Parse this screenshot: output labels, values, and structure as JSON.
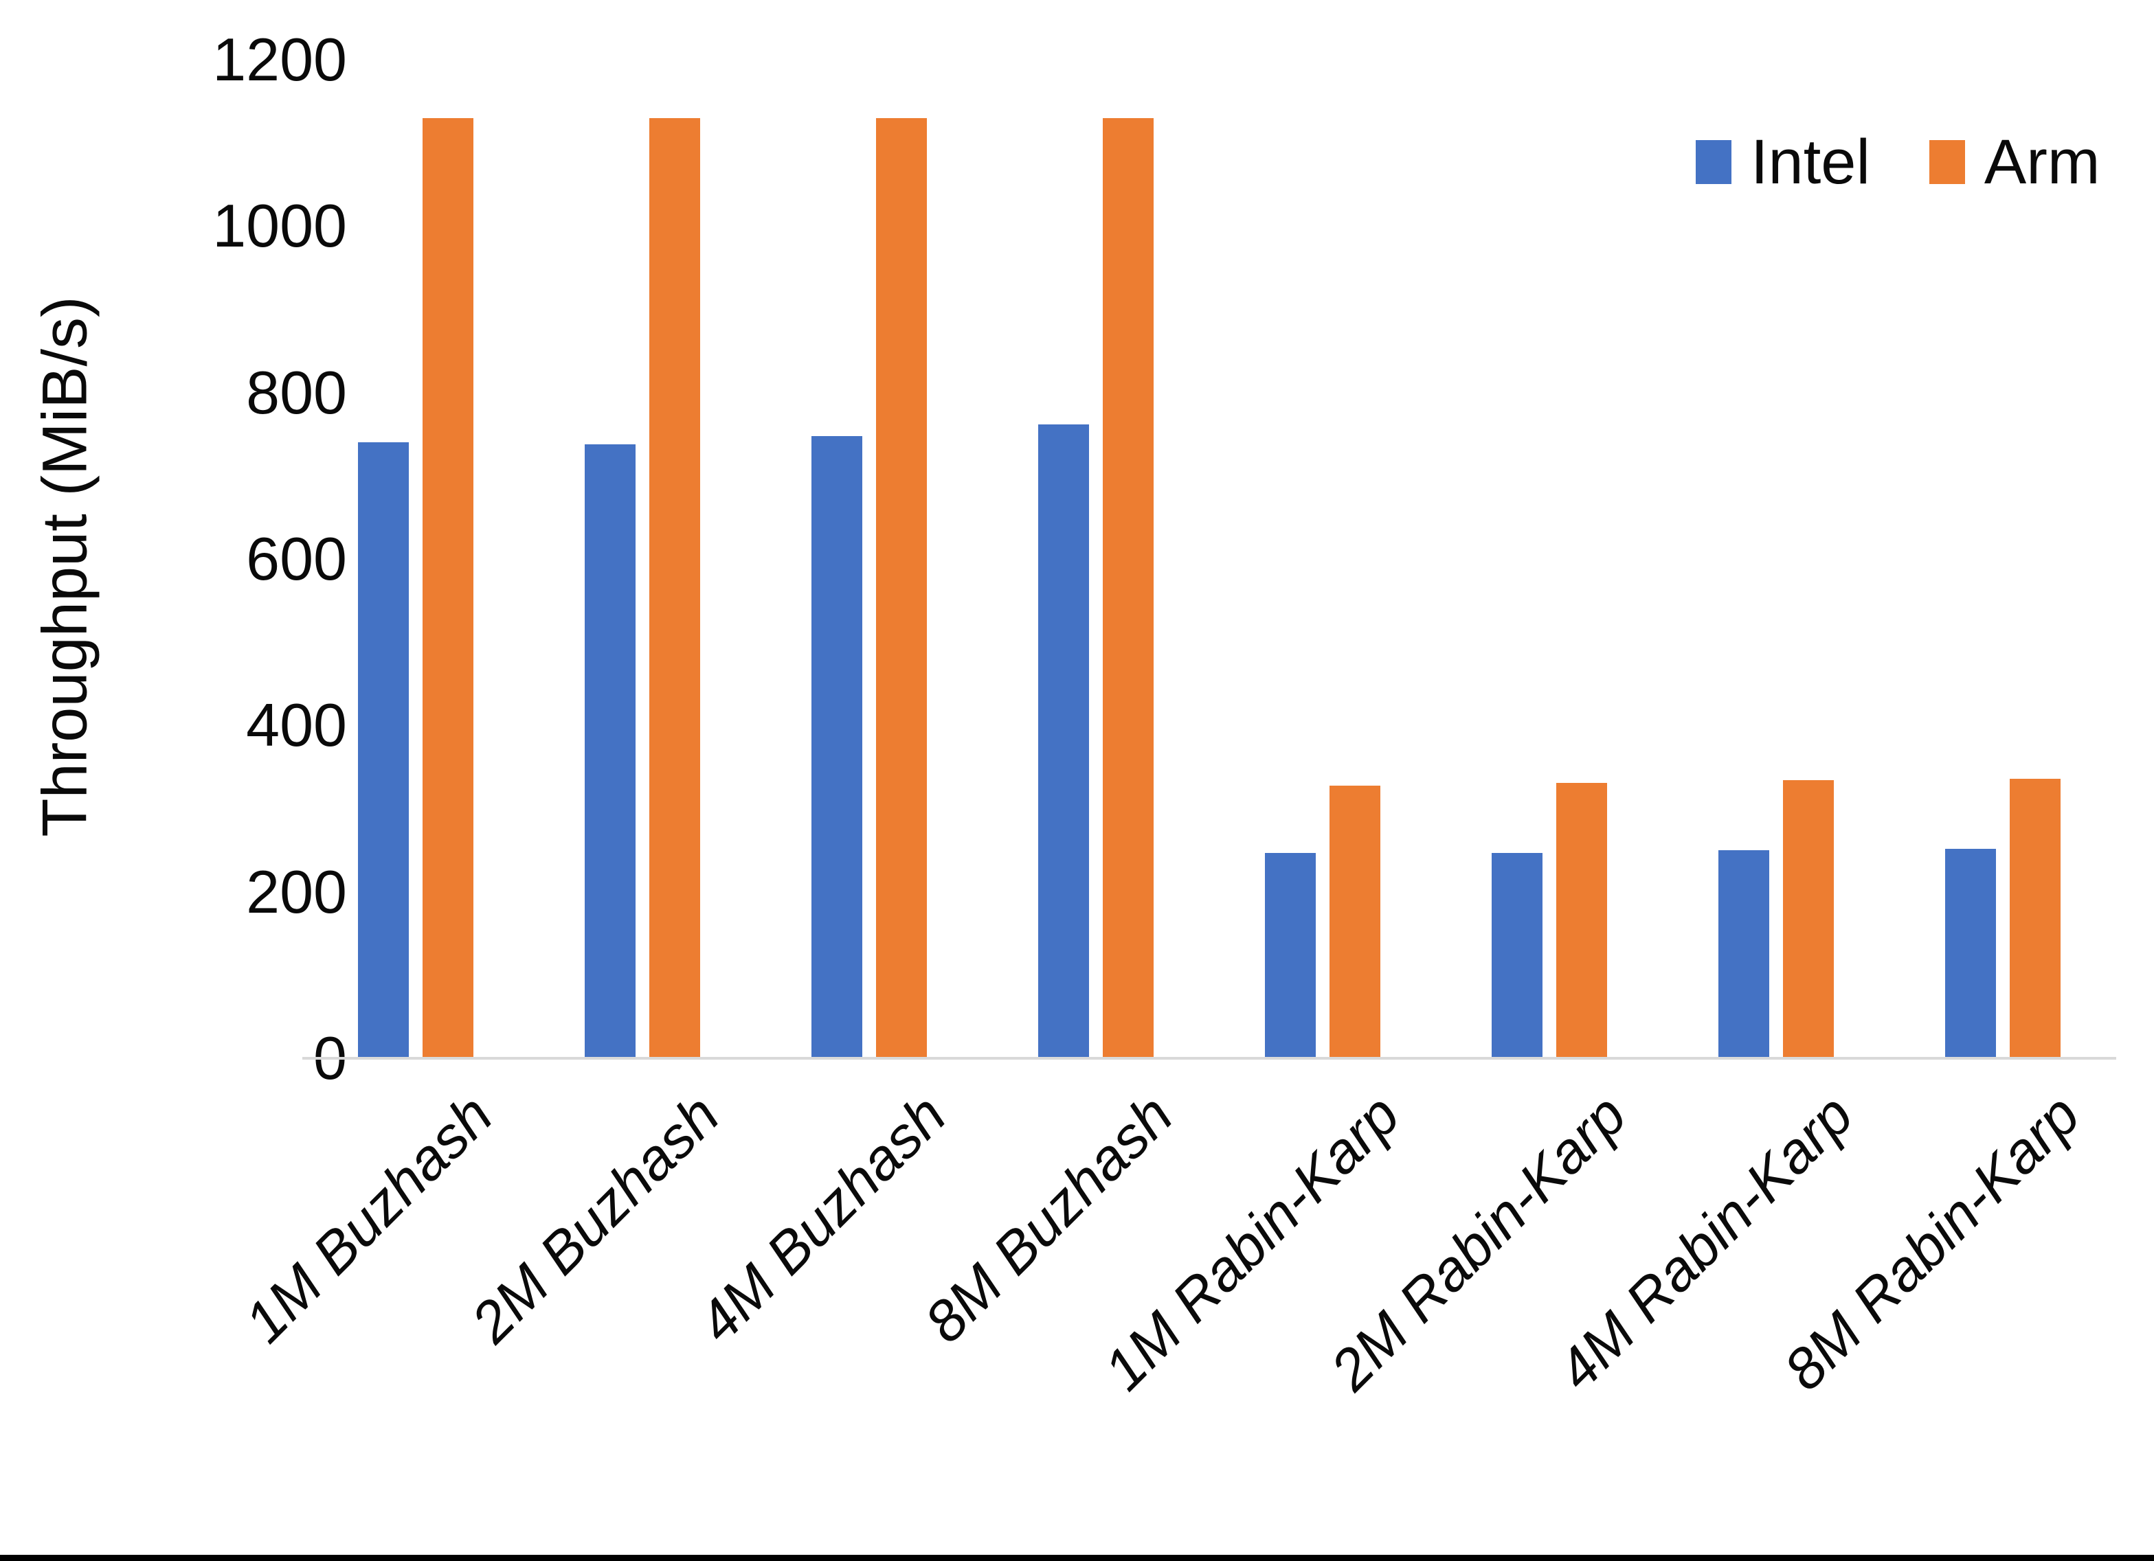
{
  "page": {
    "background": "#FFFFFF",
    "bottom_edge_color": "#000000",
    "axis_line_color": "#D9D9D9"
  },
  "chart_data": {
    "type": "bar",
    "title": "",
    "ylabel": "Throughput (MiB/s)",
    "xlabel": "",
    "categories": [
      "1M Buzhash",
      "2M Buzhash",
      "4M Buzhash",
      "8M Buzhash",
      "1M Rabin-Karp",
      "2M Rabin-Karp",
      "4M Rabin-Karp",
      "8M Rabin-Karp"
    ],
    "series": [
      {
        "name": "Intel",
        "color": "#4472C4",
        "values": [
          740,
          738,
          748,
          762,
          247,
          247,
          250,
          252
        ]
      },
      {
        "name": "Arm",
        "color": "#ED7D31",
        "values": [
          1130,
          1130,
          1130,
          1130,
          328,
          331,
          334,
          336
        ]
      }
    ],
    "ylim": [
      0,
      1200
    ],
    "yticks": [
      0,
      200,
      400,
      600,
      800,
      1000,
      1200
    ],
    "grid": false,
    "gridlines": "none",
    "legend_position": "top-right",
    "x_tick_rotation_deg": 45,
    "x_tick_style": "italic"
  }
}
